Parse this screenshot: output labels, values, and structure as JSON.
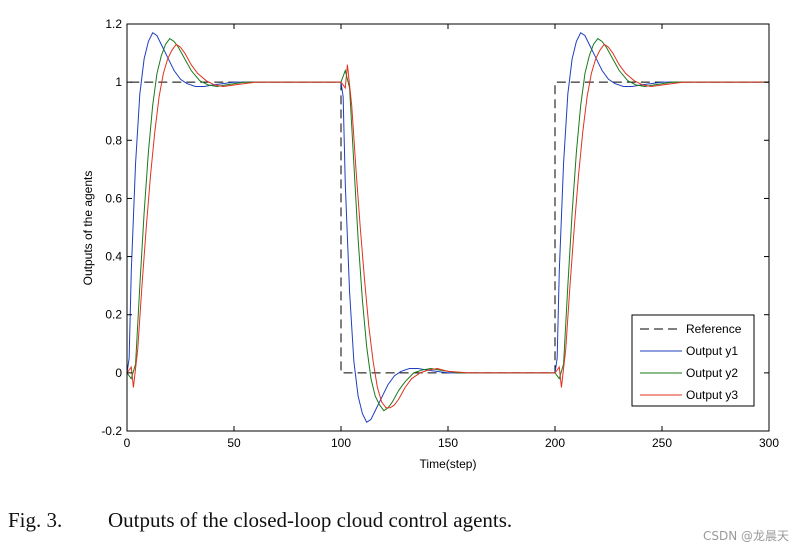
{
  "caption": {
    "label": "Fig. 3.",
    "text": "Outputs of the closed-loop cloud control agents."
  },
  "watermark": "CSDN @龙晨天",
  "chart_data": {
    "type": "line",
    "title": "",
    "xlabel": "Time(step)",
    "ylabel": "Outputs of the agents",
    "xlim": [
      0,
      300
    ],
    "ylim": [
      -0.2,
      1.2
    ],
    "xticks": [
      0,
      50,
      100,
      150,
      200,
      250,
      300
    ],
    "yticks": [
      -0.2,
      0,
      0.2,
      0.4,
      0.6,
      0.8,
      1,
      1.2
    ],
    "ytick_labels": [
      "-0.2",
      "0",
      "0.2",
      "0.4",
      "0.6",
      "0.8",
      "1",
      "1.2"
    ],
    "grid": false,
    "legend_position": "bottom-right",
    "series": [
      {
        "name": "Reference",
        "color": "#000000",
        "style": "dashed",
        "x": [
          0,
          0,
          100,
          100,
          200,
          200,
          300
        ],
        "y": [
          0,
          1,
          1,
          0,
          0,
          1,
          1
        ]
      },
      {
        "name": "Output y1",
        "color": "#1f3fbf",
        "style": "solid",
        "x": [
          0,
          1,
          2,
          4,
          6,
          8,
          10,
          12,
          14,
          16,
          18,
          20,
          22,
          25,
          28,
          32,
          36,
          40,
          50,
          60,
          100,
          101,
          102,
          104,
          106,
          108,
          110,
          112,
          114,
          116,
          118,
          120,
          122,
          125,
          128,
          132,
          136,
          140,
          150,
          160,
          200,
          201,
          202,
          204,
          206,
          208,
          210,
          212,
          214,
          216,
          218,
          220,
          222,
          225,
          228,
          232,
          236,
          240,
          250,
          260,
          300
        ],
        "y": [
          0,
          0.05,
          0.35,
          0.72,
          0.96,
          1.08,
          1.14,
          1.17,
          1.16,
          1.13,
          1.1,
          1.07,
          1.04,
          1.01,
          0.995,
          0.985,
          0.985,
          0.99,
          1.0,
          1.0,
          1.0,
          0.95,
          0.65,
          0.28,
          0.04,
          -0.08,
          -0.14,
          -0.17,
          -0.16,
          -0.13,
          -0.1,
          -0.07,
          -0.04,
          -0.01,
          0.005,
          0.015,
          0.015,
          0.01,
          0.0,
          0.0,
          0.0,
          0.05,
          0.35,
          0.72,
          0.96,
          1.08,
          1.14,
          1.17,
          1.16,
          1.13,
          1.1,
          1.07,
          1.04,
          1.01,
          0.995,
          0.985,
          0.985,
          0.99,
          1.0,
          1.0,
          1.0
        ]
      },
      {
        "name": "Output y2",
        "color": "#1a7a1a",
        "style": "solid",
        "x": [
          0,
          2,
          4,
          6,
          8,
          10,
          12,
          14,
          16,
          18,
          20,
          22,
          24,
          27,
          30,
          34,
          38,
          42,
          46,
          55,
          65,
          100,
          102,
          104,
          106,
          108,
          110,
          112,
          114,
          116,
          118,
          120,
          122,
          124,
          127,
          130,
          134,
          138,
          142,
          146,
          155,
          165,
          200,
          202,
          204,
          206,
          208,
          210,
          212,
          214,
          216,
          218,
          220,
          222,
          224,
          227,
          230,
          234,
          238,
          242,
          246,
          255,
          265,
          300
        ],
        "y": [
          0,
          -0.02,
          0.03,
          0.3,
          0.55,
          0.76,
          0.92,
          1.03,
          1.09,
          1.13,
          1.15,
          1.14,
          1.12,
          1.08,
          1.04,
          1.005,
          0.99,
          0.985,
          0.99,
          1.0,
          1.0,
          1.0,
          1.04,
          0.98,
          0.72,
          0.46,
          0.25,
          0.09,
          -0.02,
          -0.08,
          -0.11,
          -0.13,
          -0.12,
          -0.1,
          -0.06,
          -0.03,
          0.0,
          0.01,
          0.015,
          0.01,
          0.0,
          0.0,
          0.0,
          -0.02,
          0.03,
          0.3,
          0.55,
          0.76,
          0.92,
          1.03,
          1.09,
          1.13,
          1.15,
          1.14,
          1.12,
          1.08,
          1.04,
          1.005,
          0.99,
          0.985,
          0.99,
          1.0,
          1.0,
          1.0
        ]
      },
      {
        "name": "Output y3",
        "color": "#e0321e",
        "style": "solid",
        "x": [
          0,
          2,
          3,
          5,
          7,
          9,
          11,
          13,
          15,
          17,
          19,
          21,
          23,
          25,
          27,
          30,
          33,
          37,
          41,
          45,
          50,
          60,
          70,
          100,
          102,
          103,
          105,
          107,
          109,
          111,
          113,
          115,
          117,
          119,
          121,
          123,
          125,
          127,
          130,
          133,
          137,
          141,
          145,
          150,
          160,
          170,
          200,
          202,
          203,
          205,
          207,
          209,
          211,
          213,
          215,
          217,
          219,
          221,
          223,
          225,
          227,
          230,
          233,
          237,
          241,
          245,
          250,
          260,
          270,
          300
        ],
        "y": [
          0,
          0.02,
          -0.05,
          0.08,
          0.3,
          0.5,
          0.68,
          0.83,
          0.95,
          1.03,
          1.08,
          1.11,
          1.13,
          1.12,
          1.1,
          1.06,
          1.03,
          1.005,
          0.99,
          0.985,
          0.99,
          1.0,
          1.0,
          1.0,
          0.98,
          1.06,
          0.92,
          0.7,
          0.5,
          0.32,
          0.16,
          0.04,
          -0.05,
          -0.1,
          -0.12,
          -0.12,
          -0.11,
          -0.09,
          -0.05,
          -0.02,
          0.0,
          0.01,
          0.015,
          0.005,
          0.0,
          0.0,
          0.0,
          0.02,
          -0.05,
          0.08,
          0.3,
          0.5,
          0.68,
          0.83,
          0.95,
          1.03,
          1.08,
          1.11,
          1.13,
          1.12,
          1.1,
          1.06,
          1.03,
          1.005,
          0.99,
          0.985,
          0.99,
          1.0,
          1.0,
          1.0
        ]
      }
    ]
  }
}
